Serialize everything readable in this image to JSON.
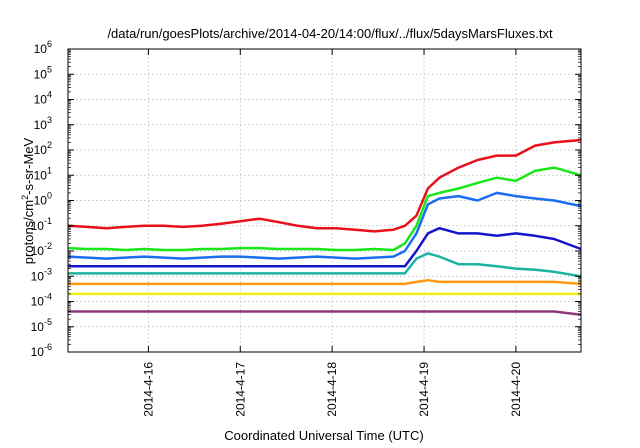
{
  "chart_data": {
    "type": "line",
    "title": "/data/run/goesPlots/archive/2014-04-20/14:00/flux/../flux/5daysMarsFluxes.txt",
    "xlabel": "Coordinated Universal Time (UTC)",
    "ylabel": "protons/cm2-s-sr-MeV",
    "ylabel_parts": {
      "base": "protons/cm",
      "sup": "2",
      "rest": "-s-sr-MeV"
    },
    "yscale": "log",
    "ylim": [
      1e-06,
      1000000.0
    ],
    "y_tick_base": "10",
    "y_ticks": [
      {
        "exp": "-6",
        "value": 1e-06
      },
      {
        "exp": "-5",
        "value": 1e-05
      },
      {
        "exp": "-4",
        "value": 0.0001
      },
      {
        "exp": "-3",
        "value": 0.001
      },
      {
        "exp": "-2",
        "value": 0.01
      },
      {
        "exp": "-1",
        "value": 0.1
      },
      {
        "exp": "0",
        "value": 1
      },
      {
        "exp": "1",
        "value": 10.0
      },
      {
        "exp": "2",
        "value": 100.0
      },
      {
        "exp": "3",
        "value": 1000.0
      },
      {
        "exp": "4",
        "value": 10000.0
      },
      {
        "exp": "5",
        "value": 100000.0
      },
      {
        "exp": "6",
        "value": 1000000.0
      }
    ],
    "xlim": [
      "2014-04-15T03:00",
      "2014-04-20T17:00"
    ],
    "x_ticks": [
      {
        "label": "2014-4-16",
        "date": "2014-04-16"
      },
      {
        "label": "2014-4-17",
        "date": "2014-04-17"
      },
      {
        "label": "2014-4-18",
        "date": "2014-04-18"
      },
      {
        "label": "2014-4-19",
        "date": "2014-04-19"
      },
      {
        "label": "2014-4-20",
        "date": "2014-04-20"
      }
    ],
    "grid": true,
    "legend": "none",
    "x": [
      "2014-04-15T03:00",
      "2014-04-15T08:00",
      "2014-04-15T13:00",
      "2014-04-15T18:00",
      "2014-04-15T23:00",
      "2014-04-16T04:00",
      "2014-04-16T09:00",
      "2014-04-16T14:00",
      "2014-04-16T19:00",
      "2014-04-17T00:00",
      "2014-04-17T05:00",
      "2014-04-17T10:00",
      "2014-04-17T15:00",
      "2014-04-17T20:00",
      "2014-04-18T01:00",
      "2014-04-18T06:00",
      "2014-04-18T11:00",
      "2014-04-18T16:00",
      "2014-04-18T19:00",
      "2014-04-18T22:00",
      "2014-04-19T01:00",
      "2014-04-19T04:00",
      "2014-04-19T09:00",
      "2014-04-19T14:00",
      "2014-04-19T19:00",
      "2014-04-20T00:00",
      "2014-04-20T05:00",
      "2014-04-20T10:00",
      "2014-04-20T17:00"
    ],
    "series": [
      {
        "color": "#e8101a",
        "values": [
          0.1,
          0.09,
          0.08,
          0.09,
          0.1,
          0.1,
          0.09,
          0.1,
          0.12,
          0.15,
          0.19,
          0.14,
          0.1,
          0.08,
          0.08,
          0.07,
          0.06,
          0.07,
          0.1,
          0.25,
          3,
          8,
          20,
          40,
          60,
          60,
          150,
          200,
          250
        ]
      },
      {
        "color": "#18e818",
        "values": [
          0.013,
          0.012,
          0.012,
          0.011,
          0.012,
          0.011,
          0.011,
          0.012,
          0.012,
          0.013,
          0.013,
          0.012,
          0.012,
          0.012,
          0.011,
          0.011,
          0.012,
          0.011,
          0.02,
          0.1,
          1.5,
          2,
          3,
          5,
          8,
          6,
          15,
          20,
          10
        ]
      },
      {
        "color": "#1a6ef0",
        "values": [
          0.006,
          0.0055,
          0.005,
          0.0055,
          0.006,
          0.0055,
          0.005,
          0.0055,
          0.006,
          0.006,
          0.0055,
          0.005,
          0.0055,
          0.006,
          0.0055,
          0.005,
          0.0055,
          0.006,
          0.01,
          0.05,
          0.7,
          1.2,
          1.5,
          1,
          2,
          1.5,
          1.2,
          1,
          0.6
        ]
      },
      {
        "color": "#1414c8",
        "values": [
          0.0025,
          0.0025,
          0.0025,
          0.0025,
          0.0025,
          0.0025,
          0.0025,
          0.0025,
          0.0025,
          0.0025,
          0.0025,
          0.0025,
          0.0025,
          0.0025,
          0.0025,
          0.0025,
          0.0025,
          0.0025,
          0.0025,
          0.01,
          0.05,
          0.08,
          0.05,
          0.05,
          0.04,
          0.05,
          0.04,
          0.03,
          0.012
        ]
      },
      {
        "color": "#1ab4a0",
        "values": [
          0.0013,
          0.0013,
          0.0013,
          0.0013,
          0.0013,
          0.0013,
          0.0013,
          0.0013,
          0.0013,
          0.0013,
          0.0013,
          0.0013,
          0.0013,
          0.0013,
          0.0013,
          0.0013,
          0.0013,
          0.0013,
          0.0013,
          0.005,
          0.008,
          0.006,
          0.003,
          0.003,
          0.0025,
          0.002,
          0.0018,
          0.0015,
          0.001
        ]
      },
      {
        "color": "#ff9a10",
        "values": [
          0.0005,
          0.0005,
          0.0005,
          0.0005,
          0.0005,
          0.0005,
          0.0005,
          0.0005,
          0.0005,
          0.0005,
          0.0005,
          0.0005,
          0.0005,
          0.0005,
          0.0005,
          0.0005,
          0.0005,
          0.0005,
          0.0005,
          0.0006,
          0.0007,
          0.0006,
          0.0006,
          0.0006,
          0.0006,
          0.0006,
          0.0006,
          0.0006,
          0.0005
        ]
      },
      {
        "color": "#f0f014",
        "values": [
          0.0002,
          0.0002,
          0.0002,
          0.0002,
          0.0002,
          0.0002,
          0.0002,
          0.0002,
          0.0002,
          0.0002,
          0.0002,
          0.0002,
          0.0002,
          0.0002,
          0.0002,
          0.0002,
          0.0002,
          0.0002,
          0.0002,
          0.0002,
          0.0002,
          0.0002,
          0.0002,
          0.0002,
          0.0002,
          0.0002,
          0.0002,
          0.0002,
          0.0002
        ]
      },
      {
        "color": "#8c3a78",
        "values": [
          4e-05,
          4e-05,
          4e-05,
          4e-05,
          4e-05,
          4e-05,
          4e-05,
          4e-05,
          4e-05,
          4e-05,
          4e-05,
          4e-05,
          4e-05,
          4e-05,
          4e-05,
          4e-05,
          4e-05,
          4e-05,
          4e-05,
          4e-05,
          4e-05,
          4e-05,
          4e-05,
          4e-05,
          4e-05,
          4e-05,
          4e-05,
          4e-05,
          3e-05
        ]
      }
    ]
  }
}
